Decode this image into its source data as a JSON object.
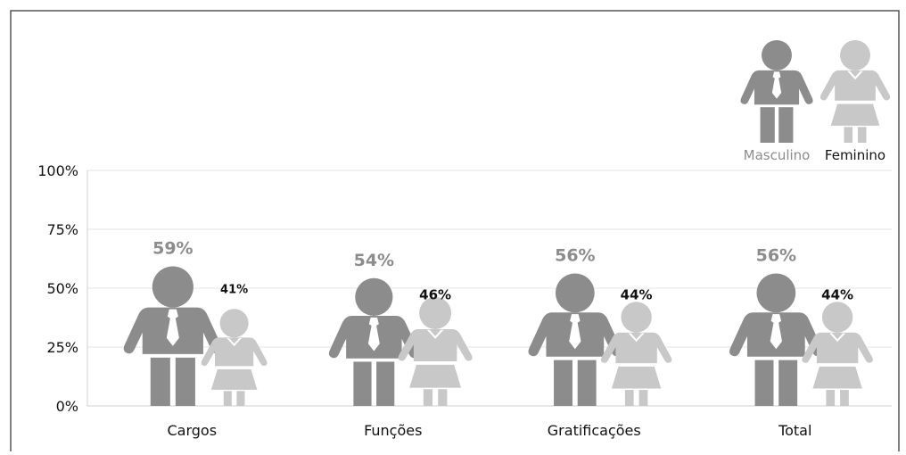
{
  "chart_data": {
    "type": "bar",
    "title": "",
    "xlabel": "",
    "ylabel": "",
    "ylim": [
      0,
      100
    ],
    "grid": true,
    "legend_position": "top-right",
    "categories": [
      "Cargos",
      "Funções",
      "Gratificações",
      "Total"
    ],
    "y_ticks": [
      "0%",
      "25%",
      "50%",
      "75%",
      "100%"
    ],
    "series": [
      {
        "name": "Masculino",
        "values": [
          59,
          54,
          56,
          56
        ],
        "labels": [
          "59%",
          "54%",
          "56%",
          "56%"
        ],
        "color": "#8c8c8c",
        "label_color": "#8c8c8c",
        "icon": "male-figure-icon"
      },
      {
        "name": "Feminino",
        "values": [
          41,
          46,
          44,
          44
        ],
        "labels": [
          "41%",
          "46%",
          "44%",
          "44%"
        ],
        "color": "#c8c8c8",
        "label_color": "#111111",
        "icon": "female-figure-icon"
      }
    ]
  },
  "legend": {
    "masculino_label": "Masculino",
    "feminino_label": "Feminino",
    "masculino_color": "#8c8c8c",
    "feminino_color": "#c8c8c8"
  }
}
